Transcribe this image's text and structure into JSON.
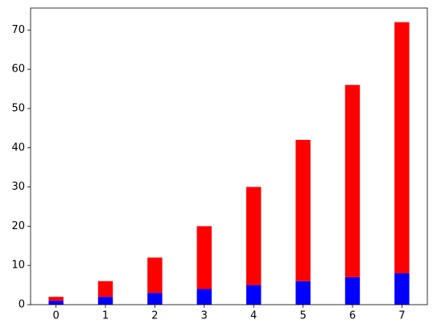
{
  "chart_data": {
    "type": "stacked-bar",
    "x": [
      0,
      1,
      2,
      3,
      4,
      5,
      6,
      7
    ],
    "series": [
      {
        "color": "#0000ff",
        "values": [
          1,
          2,
          3,
          4,
          5,
          6,
          7,
          8
        ]
      },
      {
        "color": "#ff0000",
        "values": [
          1,
          4,
          9,
          16,
          25,
          36,
          49,
          64
        ]
      }
    ],
    "bar_width": 0.3,
    "xlim": [
      -0.515,
      7.515
    ],
    "xticks": [
      0,
      1,
      2,
      3,
      4,
      5,
      6,
      7
    ],
    "ylim": [
      0,
      75.6
    ],
    "yticks": [
      0,
      10,
      20,
      30,
      40,
      50,
      60,
      70
    ]
  }
}
